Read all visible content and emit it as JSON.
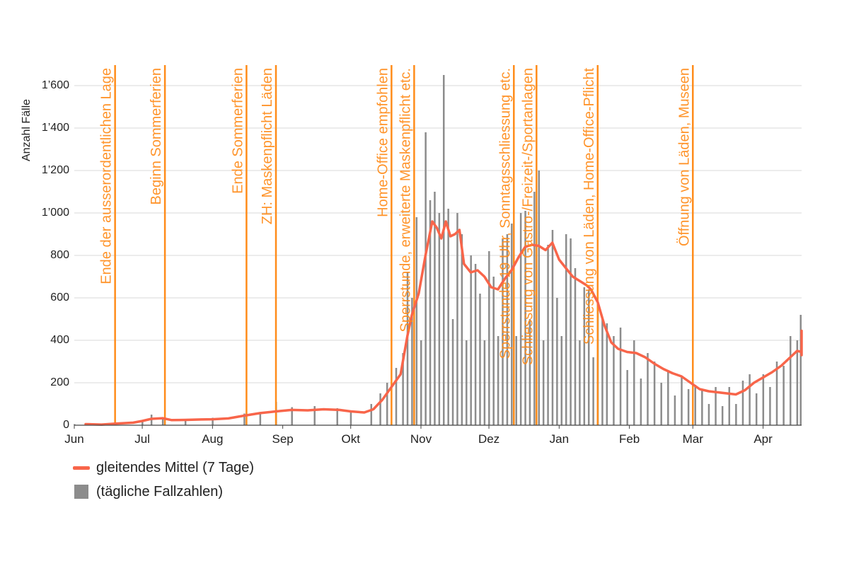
{
  "chart_data": {
    "type": "bar+line",
    "ylabel": "Anzahl Fälle",
    "ylim": [
      0,
      1650
    ],
    "yticks": [
      {
        "value": 0,
        "label": "0"
      },
      {
        "value": 200,
        "label": "200"
      },
      {
        "value": 400,
        "label": "400"
      },
      {
        "value": 600,
        "label": "600"
      },
      {
        "value": 800,
        "label": "800"
      },
      {
        "value": 1000,
        "label": "1’000"
      },
      {
        "value": 1200,
        "label": "1’200"
      },
      {
        "value": 1400,
        "label": "1’400"
      },
      {
        "value": 1600,
        "label": "1’600"
      }
    ],
    "x_domain": [
      "2020-06-01",
      "2021-04-18"
    ],
    "xticks": [
      {
        "date": "2020-06-01",
        "label": "Jun"
      },
      {
        "date": "2020-07-01",
        "label": "Jul"
      },
      {
        "date": "2020-08-01",
        "label": "Aug"
      },
      {
        "date": "2020-09-01",
        "label": "Sep"
      },
      {
        "date": "2020-10-01",
        "label": "Okt"
      },
      {
        "date": "2020-11-01",
        "label": "Nov"
      },
      {
        "date": "2020-12-01",
        "label": "Dez"
      },
      {
        "date": "2021-01-01",
        "label": "Jan"
      },
      {
        "date": "2021-02-01",
        "label": "Feb"
      },
      {
        "date": "2021-03-01",
        "label": "Mar"
      },
      {
        "date": "2021-04-01",
        "label": "Apr"
      }
    ],
    "grid": true,
    "legend_position": "bottom-left",
    "series": [
      {
        "name": "gleitendes Mittel (7 Tage)",
        "kind": "line",
        "color": "#f8654a",
        "points": [
          [
            "2020-06-06",
            5
          ],
          [
            "2020-06-13",
            3
          ],
          [
            "2020-06-20",
            8
          ],
          [
            "2020-06-27",
            12
          ],
          [
            "2020-07-01",
            20
          ],
          [
            "2020-07-05",
            30
          ],
          [
            "2020-07-10",
            33
          ],
          [
            "2020-07-14",
            24
          ],
          [
            "2020-07-20",
            25
          ],
          [
            "2020-07-27",
            27
          ],
          [
            "2020-08-01",
            28
          ],
          [
            "2020-08-08",
            32
          ],
          [
            "2020-08-15",
            45
          ],
          [
            "2020-08-22",
            57
          ],
          [
            "2020-08-29",
            65
          ],
          [
            "2020-09-05",
            72
          ],
          [
            "2020-09-12",
            70
          ],
          [
            "2020-09-19",
            75
          ],
          [
            "2020-09-26",
            72
          ],
          [
            "2020-10-01",
            65
          ],
          [
            "2020-10-07",
            60
          ],
          [
            "2020-10-11",
            75
          ],
          [
            "2020-10-15",
            120
          ],
          [
            "2020-10-19",
            180
          ],
          [
            "2020-10-23",
            240
          ],
          [
            "2020-10-26",
            420
          ],
          [
            "2020-10-28",
            520
          ],
          [
            "2020-10-31",
            620
          ],
          [
            "2020-11-03",
            800
          ],
          [
            "2020-11-06",
            960
          ],
          [
            "2020-11-08",
            930
          ],
          [
            "2020-11-10",
            880
          ],
          [
            "2020-11-12",
            960
          ],
          [
            "2020-11-14",
            890
          ],
          [
            "2020-11-16",
            900
          ],
          [
            "2020-11-18",
            920
          ],
          [
            "2020-11-20",
            760
          ],
          [
            "2020-11-23",
            720
          ],
          [
            "2020-11-26",
            730
          ],
          [
            "2020-11-29",
            700
          ],
          [
            "2020-12-02",
            650
          ],
          [
            "2020-12-05",
            640
          ],
          [
            "2020-12-08",
            690
          ],
          [
            "2020-12-11",
            730
          ],
          [
            "2020-12-14",
            790
          ],
          [
            "2020-12-17",
            840
          ],
          [
            "2020-12-20",
            850
          ],
          [
            "2020-12-23",
            845
          ],
          [
            "2020-12-26",
            825
          ],
          [
            "2020-12-29",
            860
          ],
          [
            "2021-01-01",
            780
          ],
          [
            "2021-01-04",
            740
          ],
          [
            "2021-01-07",
            700
          ],
          [
            "2021-01-10",
            680
          ],
          [
            "2021-01-13",
            660
          ],
          [
            "2021-01-15",
            640
          ],
          [
            "2021-01-18",
            580
          ],
          [
            "2021-01-21",
            470
          ],
          [
            "2021-01-24",
            390
          ],
          [
            "2021-01-27",
            360
          ],
          [
            "2021-01-31",
            345
          ],
          [
            "2021-02-04",
            340
          ],
          [
            "2021-02-08",
            320
          ],
          [
            "2021-02-12",
            290
          ],
          [
            "2021-02-16",
            265
          ],
          [
            "2021-02-20",
            245
          ],
          [
            "2021-02-24",
            230
          ],
          [
            "2021-02-28",
            200
          ],
          [
            "2021-03-04",
            170
          ],
          [
            "2021-03-08",
            160
          ],
          [
            "2021-03-12",
            155
          ],
          [
            "2021-03-16",
            150
          ],
          [
            "2021-03-20",
            145
          ],
          [
            "2021-03-24",
            165
          ],
          [
            "2021-03-28",
            200
          ],
          [
            "2021-04-01",
            225
          ],
          [
            "2021-04-05",
            250
          ],
          [
            "2021-04-09",
            280
          ],
          [
            "2021-04-13",
            320
          ],
          [
            "2021-04-16",
            350
          ],
          [
            "2021-04-19",
            345
          ],
          [
            "2021-04-22",
            330
          ],
          [
            "2021-04-25",
            370
          ],
          [
            "2021-04-28",
            440
          ],
          [
            "2021-05-01",
            445
          ]
        ]
      },
      {
        "name": "(tägliche Fallzahlen)",
        "kind": "bar",
        "color": "#8c8c8c",
        "points": [
          [
            "2020-06-01",
            5
          ],
          [
            "2020-06-15",
            8
          ],
          [
            "2020-07-01",
            25
          ],
          [
            "2020-07-05",
            50
          ],
          [
            "2020-07-10",
            35
          ],
          [
            "2020-07-20",
            30
          ],
          [
            "2020-08-01",
            35
          ],
          [
            "2020-08-15",
            55
          ],
          [
            "2020-08-22",
            60
          ],
          [
            "2020-08-29",
            110
          ],
          [
            "2020-09-05",
            85
          ],
          [
            "2020-09-15",
            90
          ],
          [
            "2020-09-25",
            80
          ],
          [
            "2020-10-01",
            70
          ],
          [
            "2020-10-10",
            100
          ],
          [
            "2020-10-14",
            150
          ],
          [
            "2020-10-17",
            200
          ],
          [
            "2020-10-21",
            270
          ],
          [
            "2020-10-24",
            340
          ],
          [
            "2020-10-26",
            720
          ],
          [
            "2020-10-28",
            600
          ],
          [
            "2020-10-30",
            980
          ],
          [
            "2020-11-01",
            400
          ],
          [
            "2020-11-03",
            1380
          ],
          [
            "2020-11-05",
            1060
          ],
          [
            "2020-11-07",
            1100
          ],
          [
            "2020-11-09",
            1000
          ],
          [
            "2020-11-11",
            1650
          ],
          [
            "2020-11-13",
            1020
          ],
          [
            "2020-11-15",
            500
          ],
          [
            "2020-11-17",
            1000
          ],
          [
            "2020-11-19",
            900
          ],
          [
            "2020-11-21",
            400
          ],
          [
            "2020-11-23",
            800
          ],
          [
            "2020-11-25",
            760
          ],
          [
            "2020-11-27",
            620
          ],
          [
            "2020-11-29",
            400
          ],
          [
            "2020-12-01",
            820
          ],
          [
            "2020-12-03",
            700
          ],
          [
            "2020-12-05",
            420
          ],
          [
            "2020-12-07",
            880
          ],
          [
            "2020-12-09",
            900
          ],
          [
            "2020-12-11",
            950
          ],
          [
            "2020-12-13",
            420
          ],
          [
            "2020-12-15",
            1000
          ],
          [
            "2020-12-17",
            1010
          ],
          [
            "2020-12-19",
            500
          ],
          [
            "2020-12-21",
            1100
          ],
          [
            "2020-12-23",
            1200
          ],
          [
            "2020-12-25",
            400
          ],
          [
            "2020-12-27",
            850
          ],
          [
            "2020-12-29",
            920
          ],
          [
            "2020-12-31",
            600
          ],
          [
            "2021-01-02",
            420
          ],
          [
            "2021-01-04",
            900
          ],
          [
            "2021-01-06",
            880
          ],
          [
            "2021-01-08",
            740
          ],
          [
            "2021-01-10",
            400
          ],
          [
            "2021-01-12",
            650
          ],
          [
            "2021-01-14",
            640
          ],
          [
            "2021-01-16",
            320
          ],
          [
            "2021-01-18",
            560
          ],
          [
            "2021-01-20",
            500
          ],
          [
            "2021-01-22",
            480
          ],
          [
            "2021-01-25",
            420
          ],
          [
            "2021-01-28",
            460
          ],
          [
            "2021-01-31",
            260
          ],
          [
            "2021-02-03",
            400
          ],
          [
            "2021-02-06",
            220
          ],
          [
            "2021-02-09",
            340
          ],
          [
            "2021-02-12",
            300
          ],
          [
            "2021-02-15",
            200
          ],
          [
            "2021-02-18",
            260
          ],
          [
            "2021-02-21",
            140
          ],
          [
            "2021-02-24",
            230
          ],
          [
            "2021-02-27",
            170
          ],
          [
            "2021-03-02",
            190
          ],
          [
            "2021-03-05",
            170
          ],
          [
            "2021-03-08",
            100
          ],
          [
            "2021-03-11",
            180
          ],
          [
            "2021-03-14",
            90
          ],
          [
            "2021-03-17",
            180
          ],
          [
            "2021-03-20",
            100
          ],
          [
            "2021-03-23",
            210
          ],
          [
            "2021-03-26",
            240
          ],
          [
            "2021-03-29",
            150
          ],
          [
            "2021-04-01",
            240
          ],
          [
            "2021-04-04",
            180
          ],
          [
            "2021-04-07",
            300
          ],
          [
            "2021-04-10",
            280
          ],
          [
            "2021-04-13",
            420
          ],
          [
            "2021-04-16",
            400
          ],
          [
            "2021-04-19",
            300
          ],
          [
            "2021-04-22",
            380
          ],
          [
            "2021-04-25",
            500
          ],
          [
            "2021-04-28",
            520
          ],
          [
            "2021-05-01",
            460
          ]
        ]
      }
    ],
    "events": [
      {
        "date": "2020-06-19",
        "label": "Ende der ausserordentlichen Lage"
      },
      {
        "date": "2020-07-11",
        "label": "Beginn Sommerferien"
      },
      {
        "date": "2020-08-16",
        "label": "Ende Sommerferien"
      },
      {
        "date": "2020-08-29",
        "label": "ZH: Maskenpflicht Läden"
      },
      {
        "date": "2020-10-19",
        "label": "Home-Office empfohlen"
      },
      {
        "date": "2020-10-29",
        "label": "Sperrstunde, erweiterte Maskenpflicht etc."
      },
      {
        "date": "2020-12-12",
        "label": "Sperrstunde 19 Uhr, Sonntagsschliessung etc."
      },
      {
        "date": "2020-12-22",
        "label": "Schliessung von Gastro-/Freizeit-/Sportanlagen"
      },
      {
        "date": "2021-01-18",
        "label": "Schliessung von Läden, Home-Office-Pflicht"
      },
      {
        "date": "2021-03-01",
        "label": "Öffnung von Läden, Museen"
      }
    ],
    "colors": {
      "line": "#f8654a",
      "bars": "#8c8c8c",
      "events": "#ff8c1a",
      "grid": "#d9d9d9",
      "axis": "#444444"
    }
  },
  "legend": {
    "line_label": "gleitendes Mittel (7 Tage)",
    "bars_label": "(tägliche Fallzahlen)"
  }
}
